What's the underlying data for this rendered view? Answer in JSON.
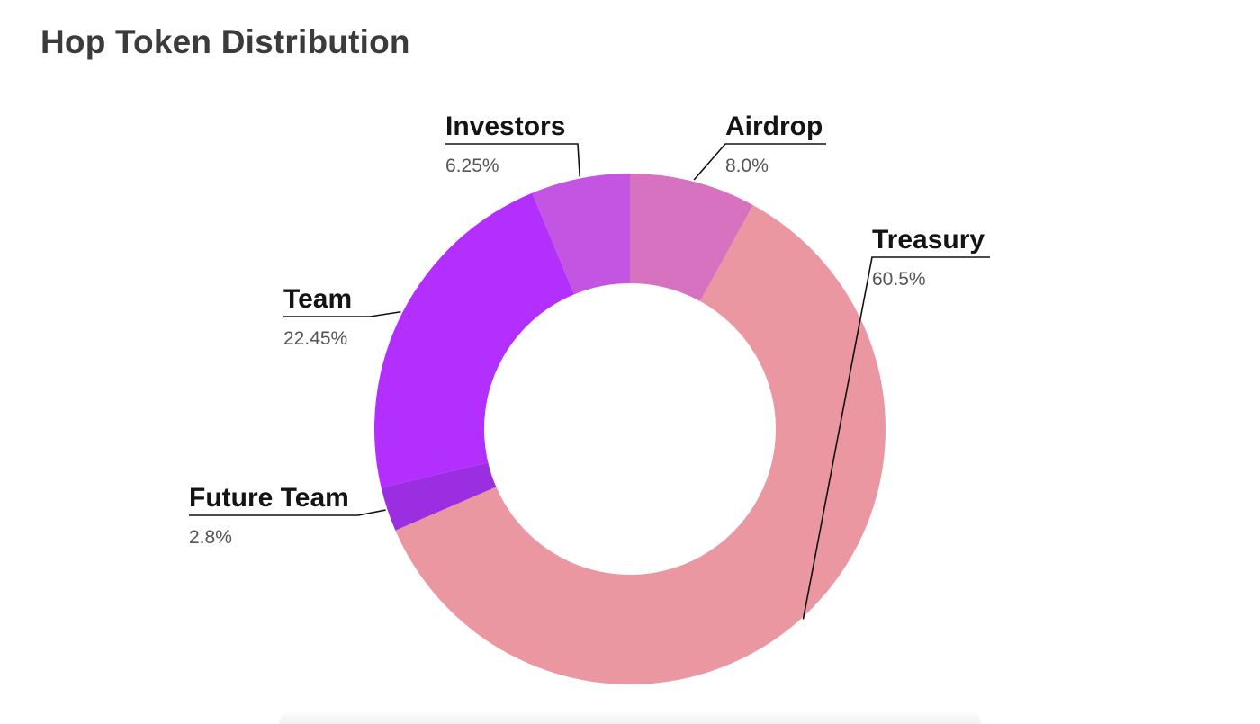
{
  "title": "Hop Token Distribution",
  "chart_data": {
    "type": "pie",
    "subtype": "donut",
    "title": "Hop Token Distribution",
    "slices": [
      {
        "label": "Airdrop",
        "value": 8.0,
        "display": "8.0%",
        "color": "#d672c0"
      },
      {
        "label": "Treasury",
        "value": 60.5,
        "display": "60.5%",
        "color": "#ea97a2"
      },
      {
        "label": "Future Team",
        "value": 2.8,
        "display": "2.8%",
        "color": "#9a2ee0"
      },
      {
        "label": "Team",
        "value": 22.45,
        "display": "22.45%",
        "color": "#b32ffd"
      },
      {
        "label": "Investors",
        "value": 6.25,
        "display": "6.25%",
        "color": "#c455e2"
      }
    ]
  }
}
